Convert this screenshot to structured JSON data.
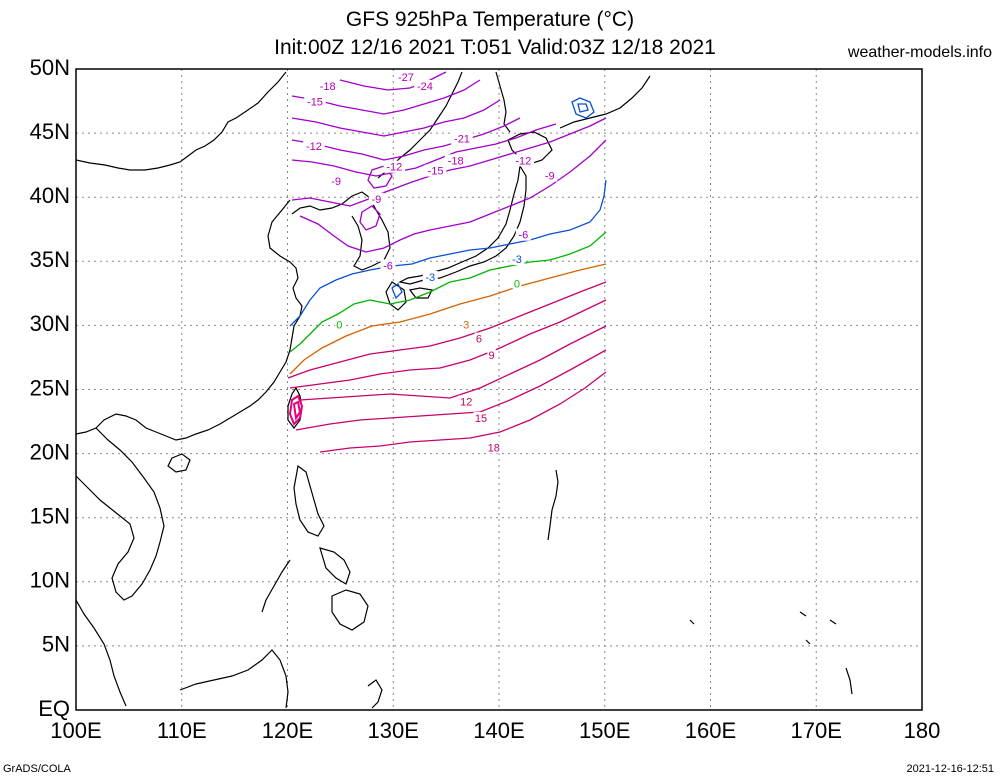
{
  "header": {
    "title_line1": "GFS 925hPa Temperature (°C)",
    "title_line2": "Init:00Z 12/16 2021 T:051 Valid:03Z 12/18 2021",
    "site": "weather-models.info"
  },
  "footer": {
    "left": "GrADS/COLA",
    "right": "2021-12-16-12:51"
  },
  "map": {
    "lon_range": [
      100,
      180
    ],
    "lat_range": [
      0,
      50
    ],
    "lat_labels": [
      "50N",
      "45N",
      "40N",
      "35N",
      "30N",
      "25N",
      "20N",
      "15N",
      "10N",
      "5N",
      "EQ"
    ],
    "lon_labels": [
      "100E",
      "110E",
      "120E",
      "130E",
      "140E",
      "150E",
      "160E",
      "170E",
      "180"
    ],
    "grid": "dotted",
    "contour_labels": [
      {
        "text": "-27",
        "lon": 131.2,
        "lat": 49.3,
        "color": "#b400b4"
      },
      {
        "text": "-24",
        "lon": 133.0,
        "lat": 48.6,
        "color": "#b400b4"
      },
      {
        "text": "-18",
        "lon": 123.8,
        "lat": 48.6,
        "color": "#b400b4"
      },
      {
        "text": "-15",
        "lon": 122.6,
        "lat": 47.4,
        "color": "#b400b4"
      },
      {
        "text": "-21",
        "lon": 136.5,
        "lat": 44.5,
        "color": "#b400b4"
      },
      {
        "text": "-12",
        "lon": 142.3,
        "lat": 42.8,
        "color": "#b400b4"
      },
      {
        "text": "-12",
        "lon": 122.5,
        "lat": 43.9,
        "color": "#b400b4"
      },
      {
        "text": "-18",
        "lon": 135.9,
        "lat": 42.8,
        "color": "#b400b4"
      },
      {
        "text": "-15",
        "lon": 134.0,
        "lat": 42.0,
        "color": "#b400b4"
      },
      {
        "text": "-12",
        "lon": 130.1,
        "lat": 42.3,
        "color": "#b400b4"
      },
      {
        "text": "-9",
        "lon": 124.6,
        "lat": 41.2,
        "color": "#b400b4"
      },
      {
        "text": "-9",
        "lon": 144.8,
        "lat": 41.6,
        "color": "#b400b4"
      },
      {
        "text": "-9",
        "lon": 128.4,
        "lat": 39.8,
        "color": "#b400b4"
      },
      {
        "text": "-6",
        "lon": 142.3,
        "lat": 37.0,
        "color": "#a000c8"
      },
      {
        "text": "-6",
        "lon": 129.5,
        "lat": 34.6,
        "color": "#a000c8"
      },
      {
        "text": "-3",
        "lon": 133.5,
        "lat": 33.7,
        "color": "#0a50d2"
      },
      {
        "text": "-3",
        "lon": 141.7,
        "lat": 35.1,
        "color": "#0a50d2"
      },
      {
        "text": "0",
        "lon": 124.9,
        "lat": 30.0,
        "color": "#00b400"
      },
      {
        "text": "0",
        "lon": 141.7,
        "lat": 33.2,
        "color": "#00b400"
      },
      {
        "text": "3",
        "lon": 136.9,
        "lat": 30.0,
        "color": "#d26400"
      },
      {
        "text": "6",
        "lon": 138.1,
        "lat": 28.9,
        "color": "#c8006e"
      },
      {
        "text": "9",
        "lon": 139.3,
        "lat": 27.6,
        "color": "#c8006e"
      },
      {
        "text": "12",
        "lon": 136.9,
        "lat": 24.0,
        "color": "#c8006e"
      },
      {
        "text": "15",
        "lon": 138.3,
        "lat": 22.7,
        "color": "#c8006e"
      },
      {
        "text": "18",
        "lon": 139.5,
        "lat": 20.4,
        "color": "#c8006e"
      }
    ]
  }
}
